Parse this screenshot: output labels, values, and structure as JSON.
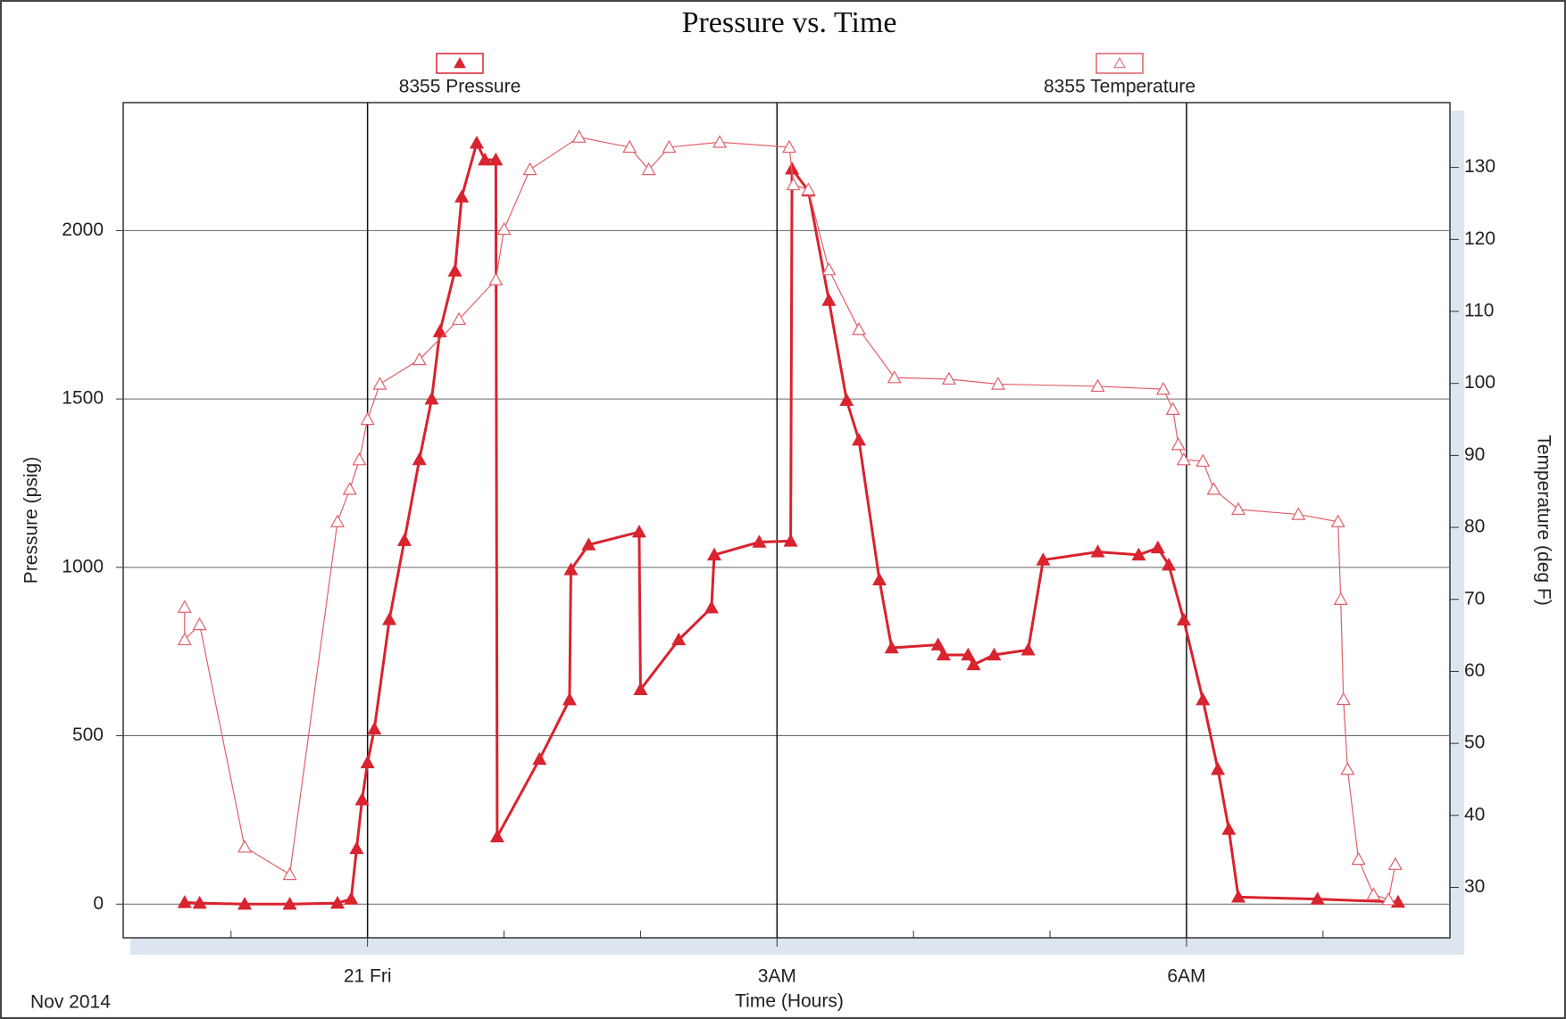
{
  "chart_data": {
    "type": "line",
    "title": "Pressure vs. Time",
    "xlabel": "Time (Hours)",
    "ylabel": "Pressure (psig)",
    "y2label": "Temperature (deg F)",
    "date_label": "Nov 2014",
    "legend": "top",
    "grid": true,
    "xlim": [
      -1.79,
      7.93
    ],
    "xticks": [
      {
        "value": 0,
        "label": "21 Fri"
      },
      {
        "value": 3,
        "label": "3AM"
      },
      {
        "value": 6,
        "label": "6AM"
      }
    ],
    "xminor_ticks": [
      -1,
      1,
      2,
      4,
      5,
      7
    ],
    "ylim": [
      -100,
      2380
    ],
    "yticks": [
      0,
      500,
      1000,
      1500,
      2000
    ],
    "y2lim": [
      23,
      139
    ],
    "y2ticks": [
      30,
      40,
      50,
      60,
      70,
      80,
      90,
      100,
      110,
      120,
      130
    ],
    "series": [
      {
        "name": "8355 Pressure",
        "color": "#d9232f",
        "marker": "triangle-filled",
        "axis": "y",
        "x": [
          -1.34,
          -1.23,
          -0.9,
          -0.57,
          -0.22,
          -0.12,
          -0.08,
          -0.04,
          0,
          0.05,
          0.16,
          0.27,
          0.38,
          0.47,
          0.53,
          0.64,
          0.69,
          0.8,
          0.86,
          0.94,
          0.95,
          1.26,
          1.48,
          1.49,
          1.62,
          1.99,
          2.0,
          2.28,
          2.52,
          2.54,
          2.87,
          3.1,
          3.11,
          3.23,
          3.38,
          3.51,
          3.6,
          3.75,
          3.84,
          4.18,
          4.22,
          4.4,
          4.44,
          4.59,
          4.84,
          4.95,
          5.35,
          5.65,
          5.79,
          5.87,
          5.98,
          6.12,
          6.23,
          6.31,
          6.38,
          6.96,
          7.55
        ],
        "values": [
          5,
          3,
          0,
          0,
          3,
          15,
          165,
          310,
          420,
          520,
          845,
          1080,
          1320,
          1500,
          1700,
          1880,
          2100,
          2260,
          2210,
          2210,
          200,
          430,
          607,
          993,
          1067,
          1105,
          637,
          785,
          880,
          1037,
          1075,
          1078,
          2183,
          2118,
          1793,
          1496,
          1378,
          963,
          761,
          770,
          740,
          740,
          711,
          740,
          755,
          1022,
          1046,
          1037,
          1058,
          1007,
          844,
          607,
          400,
          222,
          21,
          15,
          6
        ]
      },
      {
        "name": "8355 Temperature",
        "color": "#e0606a",
        "marker": "triangle-open",
        "axis": "y2",
        "x": [
          -1.34,
          -1.34,
          -1.23,
          -0.9,
          -0.57,
          -0.22,
          -0.13,
          -0.06,
          0,
          0.09,
          0.38,
          0.67,
          0.94,
          1.0,
          1.19,
          1.55,
          1.92,
          2.06,
          2.21,
          2.58,
          3.09,
          3.12,
          3.23,
          3.38,
          3.6,
          3.86,
          4.26,
          4.62,
          5.35,
          5.83,
          5.9,
          5.94,
          5.98,
          6.12,
          6.2,
          6.38,
          6.82,
          7.11,
          7.13,
          7.15,
          7.18,
          7.26,
          7.37,
          7.48,
          7.53
        ],
        "values": [
          68.9,
          64.4,
          66.5,
          35.6,
          31.8,
          80.8,
          85.3,
          89.4,
          95,
          99.9,
          103.3,
          108.9,
          114.4,
          121.4,
          129.7,
          134.2,
          132.8,
          129.7,
          132.8,
          133.5,
          132.8,
          127.6,
          126.9,
          115.8,
          107.5,
          100.8,
          100.6,
          99.9,
          99.6,
          99.2,
          96.4,
          91.5,
          89.4,
          89.2,
          85.3,
          82.5,
          81.8,
          80.8,
          70,
          56.1,
          46.4,
          33.9,
          29,
          28.3,
          33.2
        ]
      }
    ]
  }
}
